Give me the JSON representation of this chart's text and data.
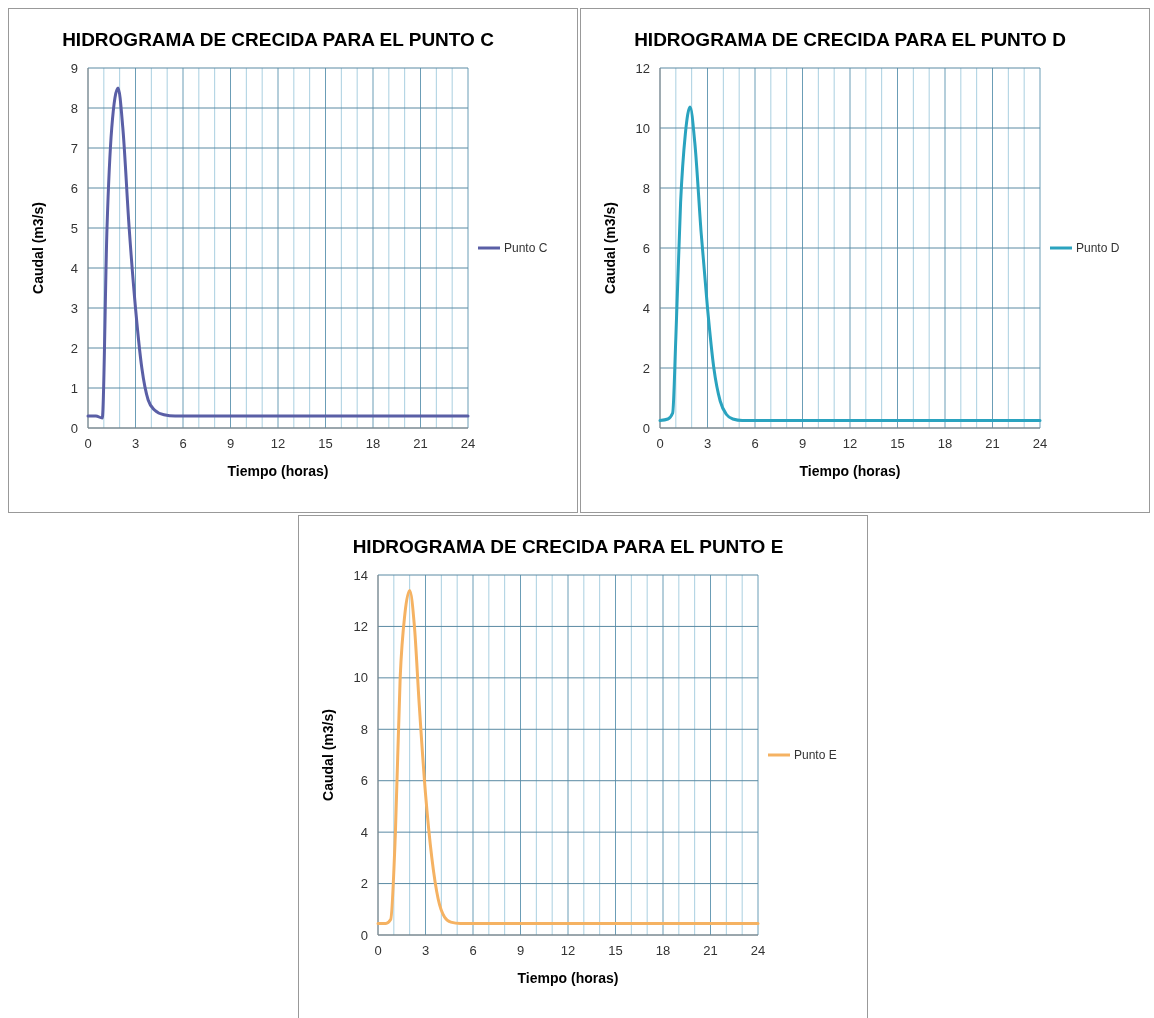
{
  "chart_data": [
    {
      "type": "line",
      "title": "HIDROGRAMA DE CRECIDA PARA EL PUNTO C",
      "xlabel": "Tiempo (horas)",
      "ylabel": "Caudal (m3/s)",
      "grid": true,
      "legend": "right",
      "xlim": [
        0,
        24
      ],
      "ylim": [
        0,
        9
      ],
      "xticks": [
        0,
        {
          "value": 1,
          "label": null
        },
        {
          "value": 2,
          "label": null
        },
        3,
        {
          "value": 4,
          "label": null
        },
        {
          "value": 5,
          "label": null
        },
        6,
        {
          "value": 7,
          "label": null
        },
        {
          "value": 8,
          "label": null
        },
        9,
        {
          "value": 10,
          "label": null
        },
        {
          "value": 11,
          "label": null
        },
        12,
        {
          "value": 13,
          "label": null
        },
        {
          "value": 14,
          "label": null
        },
        15,
        {
          "value": 16,
          "label": null
        },
        {
          "value": 17,
          "label": null
        },
        18,
        {
          "value": 19,
          "label": null
        },
        {
          "value": 20,
          "label": null
        },
        21,
        {
          "value": 22,
          "label": null
        },
        {
          "value": 23,
          "label": null
        },
        24
      ],
      "yticks": [
        0,
        1,
        2,
        3,
        4,
        5,
        6,
        7,
        8,
        9
      ],
      "series": [
        {
          "name": "Punto C",
          "color": "#5a5fa6",
          "x": [
            0,
            0.5,
            0.9,
            1.2,
            1.5,
            1.9,
            2.2,
            2.6,
            3.0,
            3.4,
            3.8,
            4.2,
            4.8,
            5.5,
            24
          ],
          "values": [
            0.3,
            0.3,
            0.25,
            5,
            7.5,
            8.5,
            7.5,
            5,
            3,
            1.5,
            0.7,
            0.45,
            0.33,
            0.3,
            0.3
          ]
        }
      ]
    },
    {
      "type": "line",
      "title": "HIDROGRAMA DE CRECIDA PARA EL PUNTO D",
      "xlabel": "Tiempo (horas)",
      "ylabel": "Caudal (m3/s)",
      "grid": true,
      "legend": "right",
      "xlim": [
        0,
        24
      ],
      "ylim": [
        0,
        12
      ],
      "xticks": [
        0,
        {
          "value": 1,
          "label": null
        },
        {
          "value": 2,
          "label": null
        },
        3,
        {
          "value": 4,
          "label": null
        },
        {
          "value": 5,
          "label": null
        },
        6,
        {
          "value": 7,
          "label": null
        },
        {
          "value": 8,
          "label": null
        },
        9,
        {
          "value": 10,
          "label": null
        },
        {
          "value": 11,
          "label": null
        },
        12,
        {
          "value": 13,
          "label": null
        },
        {
          "value": 14,
          "label": null
        },
        15,
        {
          "value": 16,
          "label": null
        },
        {
          "value": 17,
          "label": null
        },
        18,
        {
          "value": 19,
          "label": null
        },
        {
          "value": 20,
          "label": null
        },
        21,
        {
          "value": 22,
          "label": null
        },
        {
          "value": 23,
          "label": null
        },
        24
      ],
      "yticks": [
        0,
        2,
        4,
        6,
        8,
        10,
        12
      ],
      "series": [
        {
          "name": "Punto D",
          "color": "#2aa3bf",
          "x": [
            0,
            0.5,
            0.8,
            1.0,
            1.3,
            1.6,
            1.9,
            2.2,
            2.6,
            3.0,
            3.4,
            3.8,
            4.2,
            4.6,
            5.2,
            24
          ],
          "values": [
            0.25,
            0.3,
            0.5,
            3,
            7.5,
            9.8,
            10.7,
            9.5,
            6.5,
            4,
            2,
            0.9,
            0.45,
            0.3,
            0.25,
            0.25
          ]
        }
      ]
    },
    {
      "type": "line",
      "title": "HIDROGRAMA DE CRECIDA PARA EL PUNTO E",
      "xlabel": "Tiempo (horas)",
      "ylabel": "Caudal (m3/s)",
      "grid": true,
      "legend": "right",
      "xlim": [
        0,
        24
      ],
      "ylim": [
        0,
        14
      ],
      "xticks": [
        0,
        {
          "value": 1,
          "label": null
        },
        {
          "value": 2,
          "label": null
        },
        3,
        {
          "value": 4,
          "label": null
        },
        {
          "value": 5,
          "label": null
        },
        6,
        {
          "value": 7,
          "label": null
        },
        {
          "value": 8,
          "label": null
        },
        9,
        {
          "value": 10,
          "label": null
        },
        {
          "value": 11,
          "label": null
        },
        12,
        {
          "value": 13,
          "label": null
        },
        {
          "value": 14,
          "label": null
        },
        15,
        {
          "value": 16,
          "label": null
        },
        {
          "value": 17,
          "label": null
        },
        18,
        {
          "value": 19,
          "label": null
        },
        {
          "value": 20,
          "label": null
        },
        21,
        {
          "value": 22,
          "label": null
        },
        {
          "value": 23,
          "label": null
        },
        24
      ],
      "yticks": [
        0,
        2,
        4,
        6,
        8,
        10,
        12,
        14
      ],
      "series": [
        {
          "name": "Punto E",
          "color": "#f5b262",
          "x": [
            0,
            0.5,
            0.8,
            1.1,
            1.4,
            1.7,
            2.0,
            2.3,
            2.6,
            3.0,
            3.4,
            3.8,
            4.2,
            4.6,
            5.2,
            24
          ],
          "values": [
            0.45,
            0.45,
            0.6,
            4,
            10,
            12.5,
            13.4,
            12,
            9,
            5.5,
            3,
            1.4,
            0.7,
            0.5,
            0.45,
            0.45
          ]
        }
      ]
    }
  ]
}
